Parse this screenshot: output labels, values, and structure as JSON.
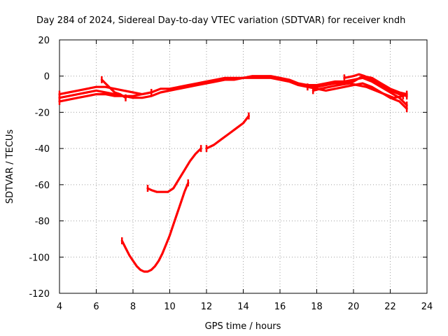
{
  "chart_data": {
    "type": "line",
    "title": "Day 284 of 2024, Sidereal Day-to-day VTEC variation (SDTVAR) for receiver kndh",
    "xlabel": "GPS time / hours",
    "ylabel": "SDTVAR / TECUs",
    "xlim": [
      4,
      24
    ],
    "ylim": [
      -120,
      20
    ],
    "xticks": [
      4,
      6,
      8,
      10,
      12,
      14,
      16,
      18,
      20,
      22,
      24
    ],
    "yticks": [
      20,
      0,
      -20,
      -40,
      -60,
      -80,
      -100,
      -120
    ],
    "grid": true,
    "legend": "none",
    "color": "#ff0000",
    "series": [
      {
        "name": "arc-1",
        "x": [
          4.0,
          4.5,
          5.0,
          5.5,
          6.0,
          6.5,
          7.0,
          7.5,
          8.0,
          8.5,
          9.0,
          9.5,
          10.0,
          10.5,
          11.0,
          11.5,
          12.0,
          12.5,
          13.0,
          13.5,
          14.0,
          14.5,
          15.0,
          15.5,
          16.0,
          16.5,
          17.0,
          17.5,
          18.0,
          18.5,
          19.0,
          19.5,
          20.0,
          20.5,
          21.0,
          21.5,
          22.0,
          22.5,
          22.9
        ],
        "y": [
          -10,
          -9,
          -8,
          -7,
          -6,
          -6,
          -7,
          -8,
          -9,
          -10,
          -9,
          -7,
          -7,
          -6,
          -5,
          -4,
          -3,
          -2,
          -1,
          -1,
          -1,
          0,
          0,
          0,
          -1,
          -2,
          -4,
          -5,
          -5,
          -4,
          -3,
          -3,
          -2,
          -1,
          -3,
          -6,
          -9,
          -12,
          -16
        ]
      },
      {
        "name": "arc-2",
        "x": [
          4.0,
          4.5,
          5.0,
          5.5,
          6.0,
          6.5,
          7.0,
          7.5,
          8.0,
          8.5,
          9.0,
          9.5,
          10.0,
          10.5,
          11.0,
          11.5,
          12.0,
          12.5,
          13.0,
          13.5,
          14.0,
          14.5,
          15.0,
          15.5,
          16.0,
          16.5,
          17.0,
          17.5,
          18.0,
          18.5,
          19.0,
          19.5,
          20.0,
          20.5,
          21.0,
          21.5,
          22.0,
          22.5,
          22.9
        ],
        "y": [
          -14,
          -13,
          -12,
          -11,
          -10,
          -10,
          -11,
          -11,
          -12,
          -12,
          -11,
          -9,
          -8,
          -7,
          -6,
          -5,
          -4,
          -3,
          -2,
          -2,
          -1,
          -1,
          -1,
          -1,
          -2,
          -3,
          -5,
          -6,
          -7,
          -8,
          -7,
          -6,
          -5,
          -4,
          -6,
          -9,
          -12,
          -14,
          -18
        ]
      },
      {
        "name": "arc-3",
        "x": [
          4.0,
          4.5,
          5.0,
          5.5,
          6.0,
          6.5,
          7.0,
          7.5,
          8.0,
          8.5,
          9.0
        ],
        "y": [
          -12,
          -11,
          -10,
          -9,
          -8,
          -9,
          -10,
          -11,
          -11,
          -10,
          -9
        ]
      },
      {
        "name": "arc-4",
        "x": [
          6.3,
          6.5,
          6.8,
          7.0,
          7.3,
          7.6
        ],
        "y": [
          -2,
          -4,
          -7,
          -9,
          -10,
          -12
        ]
      },
      {
        "name": "arc-5",
        "x": [
          17.5,
          18.0,
          18.5,
          19.0,
          19.5,
          20.0,
          20.5,
          21.0,
          21.5,
          22.0,
          22.5,
          22.9
        ],
        "y": [
          -6,
          -6,
          -5,
          -4,
          -4,
          -3,
          0,
          -1,
          -4,
          -7,
          -9,
          -10
        ]
      },
      {
        "name": "arc-6",
        "x": [
          19.5,
          20.0,
          20.3,
          20.6,
          21.0,
          21.5,
          22.0,
          22.5,
          22.9
        ],
        "y": [
          -1,
          0,
          1,
          0,
          -2,
          -5,
          -8,
          -10,
          -11
        ]
      },
      {
        "name": "arc-7",
        "x": [
          17.8,
          18.2,
          18.7,
          19.2,
          19.8,
          20.2,
          20.7,
          21.2,
          21.7,
          22.2,
          22.7
        ],
        "y": [
          -8,
          -7,
          -6,
          -5,
          -4,
          -5,
          -6,
          -8,
          -10,
          -12,
          -11
        ]
      },
      {
        "name": "arc-8",
        "x": [
          7.4,
          7.6,
          7.8,
          8.0,
          8.2,
          8.4,
          8.6,
          8.8,
          9.0,
          9.2,
          9.4,
          9.6,
          9.8,
          10.0,
          10.2,
          10.4,
          10.6,
          10.8,
          11.0
        ],
        "y": [
          -91,
          -95,
          -99,
          -102,
          -105,
          -107,
          -108,
          -108,
          -107,
          -105,
          -102,
          -98,
          -93,
          -88,
          -82,
          -76,
          -70,
          -64,
          -59
        ]
      },
      {
        "name": "arc-9",
        "x": [
          8.8,
          9.0,
          9.3,
          9.6,
          9.9,
          10.2,
          10.5,
          10.8,
          11.1,
          11.4,
          11.7
        ],
        "y": [
          -62,
          -63,
          -64,
          -64,
          -64,
          -62,
          -57,
          -52,
          -47,
          -43,
          -40
        ]
      },
      {
        "name": "arc-10",
        "x": [
          12.0,
          12.4,
          12.8,
          13.2,
          13.6,
          14.0,
          14.3
        ],
        "y": [
          -40,
          -38,
          -35,
          -32,
          -29,
          -26,
          -22
        ]
      }
    ]
  }
}
